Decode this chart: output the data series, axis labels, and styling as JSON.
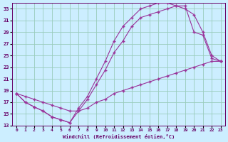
{
  "xlabel": "Windchill (Refroidissement éolien,°C)",
  "bg_color": "#cceeff",
  "grid_color": "#99ccbb",
  "line_color": "#993399",
  "xlim": [
    -0.5,
    23.5
  ],
  "ylim": [
    13,
    34
  ],
  "yticks": [
    13,
    15,
    17,
    19,
    21,
    23,
    25,
    27,
    29,
    31,
    33
  ],
  "xticks": [
    0,
    1,
    2,
    3,
    4,
    5,
    6,
    7,
    8,
    9,
    10,
    11,
    12,
    13,
    14,
    15,
    16,
    17,
    18,
    19,
    20,
    21,
    22,
    23
  ],
  "line1_x": [
    0,
    1,
    2,
    3,
    4,
    5,
    6,
    7,
    8,
    9,
    10,
    11,
    12,
    13,
    14,
    15,
    16,
    17,
    18,
    19,
    20,
    21,
    22,
    23
  ],
  "line1_y": [
    18.5,
    17.0,
    16.2,
    15.5,
    14.5,
    14.0,
    13.5,
    16.0,
    18.0,
    21.0,
    24.0,
    27.5,
    30.0,
    31.5,
    33.0,
    33.5,
    34.0,
    34.0,
    33.5,
    33.5,
    29.0,
    28.5,
    24.5,
    24.0
  ],
  "line2_x": [
    0,
    1,
    2,
    3,
    4,
    5,
    6,
    7,
    8,
    9,
    10,
    11,
    12,
    13,
    14,
    15,
    16,
    17,
    18,
    19,
    20,
    21,
    22,
    23
  ],
  "line2_y": [
    18.5,
    17.0,
    16.2,
    15.5,
    14.5,
    14.0,
    13.5,
    15.5,
    17.5,
    20.0,
    22.5,
    25.5,
    27.5,
    30.0,
    31.5,
    32.0,
    32.5,
    33.0,
    33.5,
    33.0,
    32.0,
    29.0,
    25.0,
    24.0
  ],
  "line3_x": [
    0,
    1,
    2,
    3,
    4,
    5,
    6,
    7,
    8,
    9,
    10,
    11,
    12,
    13,
    14,
    15,
    16,
    17,
    18,
    19,
    20,
    21,
    22,
    23
  ],
  "line3_y": [
    18.5,
    18.0,
    17.5,
    17.0,
    16.5,
    16.0,
    15.5,
    15.5,
    16.0,
    17.0,
    17.5,
    18.5,
    19.0,
    19.5,
    20.0,
    20.5,
    21.0,
    21.5,
    22.0,
    22.5,
    23.0,
    23.5,
    24.0,
    24.0
  ],
  "marker": "+",
  "markersize": 3,
  "linewidth": 0.8
}
